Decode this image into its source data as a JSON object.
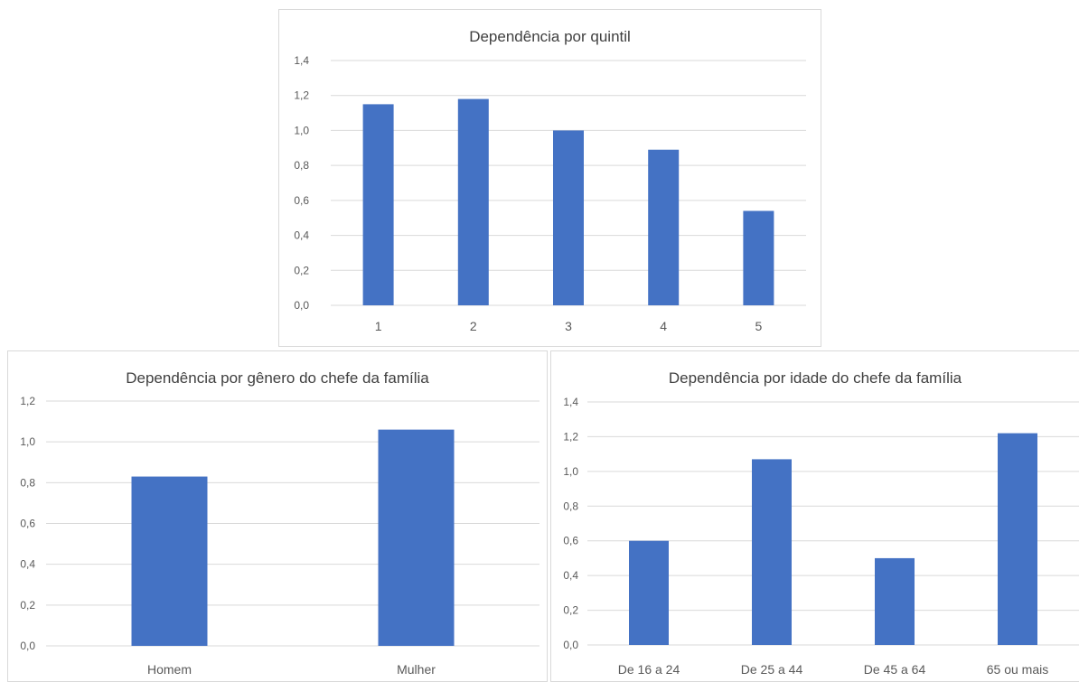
{
  "colors": {
    "bar": "#4472C4",
    "grid": "#d9d9d9",
    "text": "#595959",
    "title": "#404040"
  },
  "chart_data": [
    {
      "type": "bar",
      "title": "Dependência por quintil",
      "xlabel": "",
      "ylabel": "",
      "categories": [
        "1",
        "2",
        "3",
        "4",
        "5"
      ],
      "values": [
        1.15,
        1.18,
        1.0,
        0.89,
        0.54
      ],
      "ylim": [
        0,
        1.4
      ],
      "yticks": [
        "0,0",
        "0,2",
        "0,4",
        "0,6",
        "0,8",
        "1,0",
        "1,2",
        "1,4"
      ],
      "grid": true,
      "legend": "none"
    },
    {
      "type": "bar",
      "title": "Dependência por gênero do chefe da família",
      "xlabel": "",
      "ylabel": "",
      "categories": [
        "Homem",
        "Mulher"
      ],
      "values": [
        0.83,
        1.06
      ],
      "ylim": [
        0,
        1.2
      ],
      "yticks": [
        "0,0",
        "0,2",
        "0,4",
        "0,6",
        "0,8",
        "1,0",
        "1,2"
      ],
      "grid": true,
      "legend": "none"
    },
    {
      "type": "bar",
      "title": "Dependência por idade do chefe da família",
      "xlabel": "",
      "ylabel": "",
      "categories": [
        "De 16 a 24",
        "De 25 a 44",
        "De 45 a 64",
        "65 ou mais"
      ],
      "values": [
        0.6,
        1.07,
        0.5,
        1.22
      ],
      "ylim": [
        0,
        1.4
      ],
      "yticks": [
        "0,0",
        "0,2",
        "0,4",
        "0,6",
        "0,8",
        "1,0",
        "1,2",
        "1,4"
      ],
      "grid": true,
      "legend": "none"
    }
  ]
}
